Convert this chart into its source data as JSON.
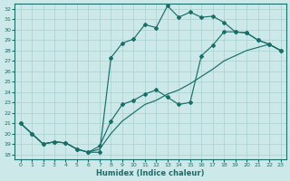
{
  "xlabel": "Humidex (Indice chaleur)",
  "bg_color": "#cce8e8",
  "grid_color": "#a8d0d0",
  "line_color": "#1a6e6a",
  "xlim": [
    -0.5,
    23.5
  ],
  "ylim": [
    17.5,
    32.5
  ],
  "xticks": [
    0,
    1,
    2,
    3,
    4,
    5,
    6,
    7,
    8,
    9,
    10,
    11,
    12,
    13,
    14,
    15,
    16,
    17,
    18,
    19,
    20,
    21,
    22,
    23
  ],
  "yticks": [
    18,
    19,
    20,
    21,
    22,
    23,
    24,
    25,
    26,
    27,
    28,
    29,
    30,
    31,
    32
  ],
  "curve1_x": [
    0,
    1,
    2,
    3,
    4,
    5,
    6,
    7,
    8,
    9,
    10,
    11,
    12,
    13,
    14,
    15,
    16,
    17,
    18,
    19,
    20,
    21,
    22,
    23
  ],
  "curve1_y": [
    21.0,
    20.0,
    19.0,
    19.2,
    19.1,
    18.5,
    18.2,
    18.2,
    27.3,
    28.7,
    29.1,
    30.5,
    30.2,
    32.3,
    31.2,
    31.7,
    31.2,
    31.3,
    30.7,
    29.8,
    29.7,
    29.0,
    28.6,
    28.0
  ],
  "curve2_x": [
    0,
    1,
    2,
    3,
    4,
    5,
    6,
    7,
    8,
    9,
    10,
    11,
    12,
    13,
    14,
    15,
    16,
    17,
    18,
    19,
    20,
    21,
    22,
    23
  ],
  "curve2_y": [
    21.0,
    20.0,
    19.0,
    19.2,
    19.1,
    18.5,
    18.2,
    18.8,
    21.2,
    22.8,
    23.2,
    23.8,
    24.2,
    23.5,
    22.8,
    23.0,
    27.5,
    28.5,
    29.8,
    29.8,
    29.7,
    29.0,
    28.6,
    28.0
  ],
  "curve3_x": [
    0,
    1,
    2,
    3,
    4,
    5,
    6,
    7,
    8,
    9,
    10,
    11,
    12,
    13,
    14,
    15,
    16,
    17,
    18,
    19,
    20,
    21,
    22,
    23
  ],
  "curve3_y": [
    21.0,
    20.0,
    19.0,
    19.2,
    19.1,
    18.5,
    18.2,
    18.5,
    20.0,
    21.2,
    22.0,
    22.8,
    23.2,
    23.8,
    24.2,
    24.8,
    25.5,
    26.2,
    27.0,
    27.5,
    28.0,
    28.3,
    28.6,
    28.0
  ]
}
